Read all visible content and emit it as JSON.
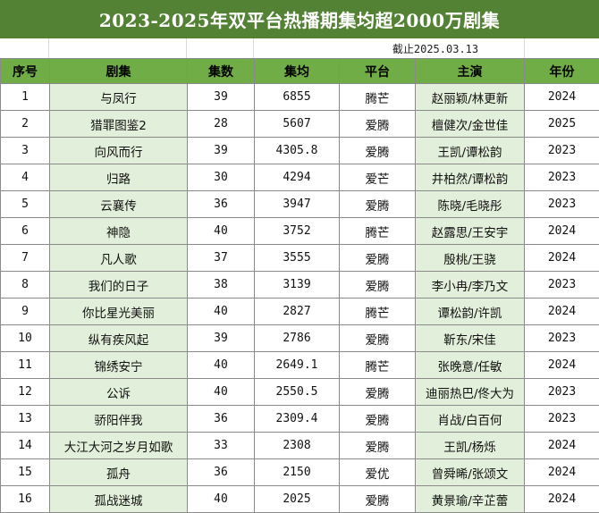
{
  "title": "2023-2025年双平台热播期集均超2000万剧集",
  "date_note": "截止2025.03.13",
  "columns": [
    "序号",
    "剧集",
    "集数",
    "集均",
    "平台",
    "主演",
    "年份"
  ],
  "rows": [
    [
      "1",
      "与凤行",
      "39",
      "6855",
      "腾芒",
      "赵丽颖/林更新",
      "2024"
    ],
    [
      "2",
      "猎罪图鉴2",
      "28",
      "5607",
      "爱腾",
      "檀健次/金世佳",
      "2025"
    ],
    [
      "3",
      "向风而行",
      "39",
      "4305.8",
      "爱腾",
      "王凯/谭松韵",
      "2023"
    ],
    [
      "4",
      "归路",
      "30",
      "4294",
      "爱芒",
      "井柏然/谭松韵",
      "2023"
    ],
    [
      "5",
      "云襄传",
      "36",
      "3947",
      "爱腾",
      "陈晓/毛晓彤",
      "2023"
    ],
    [
      "6",
      "神隐",
      "40",
      "3752",
      "腾芒",
      "赵露思/王安宇",
      "2024"
    ],
    [
      "7",
      "凡人歌",
      "37",
      "3555",
      "爱腾",
      "殷桃/王骁",
      "2024"
    ],
    [
      "8",
      "我们的日子",
      "38",
      "3139",
      "爱腾",
      "李小冉/李乃文",
      "2023"
    ],
    [
      "9",
      "你比星光美丽",
      "40",
      "2827",
      "腾芒",
      "谭松韵/许凯",
      "2024"
    ],
    [
      "10",
      "纵有疾风起",
      "39",
      "2786",
      "爱腾",
      "靳东/宋佳",
      "2023"
    ],
    [
      "11",
      "锦绣安宁",
      "40",
      "2649.1",
      "腾芒",
      "张晚意/任敏",
      "2024"
    ],
    [
      "12",
      "公诉",
      "40",
      "2550.5",
      "爱腾",
      "迪丽热巴/佟大为",
      "2023"
    ],
    [
      "13",
      "骄阳伴我",
      "36",
      "2309.4",
      "爱腾",
      "肖战/白百何",
      "2023"
    ],
    [
      "14",
      "大江大河之岁月如歌",
      "33",
      "2308",
      "爱腾",
      "王凯/杨烁",
      "2024"
    ],
    [
      "15",
      "孤舟",
      "36",
      "2150",
      "爱优",
      "曾舜晞/张颂文",
      "2024"
    ],
    [
      "16",
      "孤战迷城",
      "40",
      "2025",
      "爱腾",
      "黄景瑜/辛芷蕾",
      "2024"
    ]
  ],
  "colors": {
    "title_bg": "#548235",
    "header_bg": "#70ad47",
    "shaded_cell": "#e2efda"
  }
}
